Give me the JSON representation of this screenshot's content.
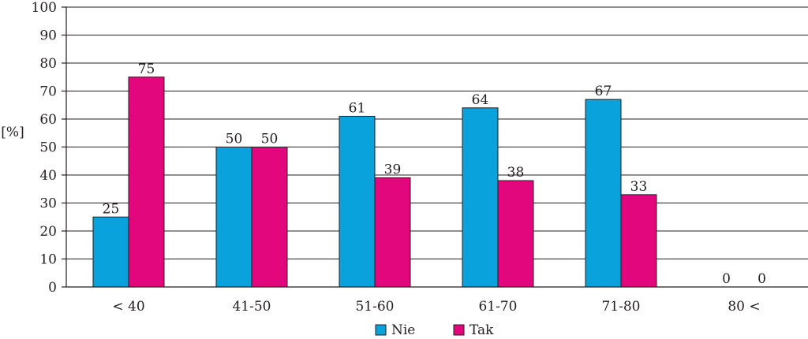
{
  "chart_data": {
    "type": "bar",
    "categories": [
      "< 40",
      "41-50",
      "51-60",
      "61-70",
      "71-80",
      "80 <"
    ],
    "series": [
      {
        "name": "Nie",
        "color": "#0aa2dc",
        "values": [
          25,
          50,
          61,
          64,
          67,
          0
        ]
      },
      {
        "name": "Tak",
        "color": "#e2077c",
        "values": [
          75,
          50,
          39,
          38,
          33,
          0
        ]
      }
    ],
    "title": "",
    "xlabel": "",
    "ylabel": "[%]",
    "ylim": [
      0,
      100
    ],
    "yticks": [
      0,
      10,
      20,
      30,
      40,
      50,
      60,
      70,
      80,
      90,
      100
    ],
    "grid": "horizontal",
    "legend": "bottom-center",
    "data_labels": true
  }
}
